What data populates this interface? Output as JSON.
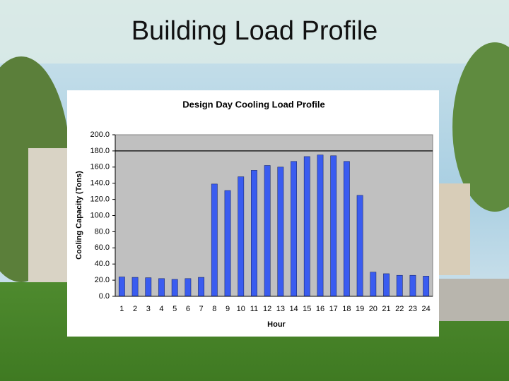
{
  "slide_title": "Building Load Profile",
  "chart_data": {
    "type": "bar",
    "title": "Design Day Cooling Load Profile",
    "x_label": "Hour",
    "y_label": "Cooling Capacity (Tons)",
    "categories": [
      "1",
      "2",
      "3",
      "4",
      "5",
      "6",
      "7",
      "8",
      "9",
      "10",
      "11",
      "12",
      "13",
      "14",
      "15",
      "16",
      "17",
      "18",
      "19",
      "20",
      "21",
      "22",
      "23",
      "24"
    ],
    "values": [
      24,
      23.5,
      23,
      22,
      21,
      22,
      23.5,
      139,
      131,
      148,
      156,
      162,
      160,
      167,
      173,
      175,
      174,
      167,
      125,
      30,
      28,
      26,
      26,
      25
    ],
    "color": "#3a5cf0",
    "ylim": [
      0,
      200
    ],
    "yticks": [
      {
        "value": 0,
        "label": "0.0"
      },
      {
        "value": 20,
        "label": "20.0"
      },
      {
        "value": 40,
        "label": "40.0"
      },
      {
        "value": 60,
        "label": "60.0"
      },
      {
        "value": 80,
        "label": "80.0"
      },
      {
        "value": 100,
        "label": "100.0"
      },
      {
        "value": 120,
        "label": "120.0"
      },
      {
        "value": 140,
        "label": "140.0"
      },
      {
        "value": 160,
        "label": "160.0"
      },
      {
        "value": 180,
        "label": "180.0"
      },
      {
        "value": 200,
        "label": "200.0"
      }
    ],
    "reference_line": 180,
    "plot_background": "#c0c0c0"
  }
}
